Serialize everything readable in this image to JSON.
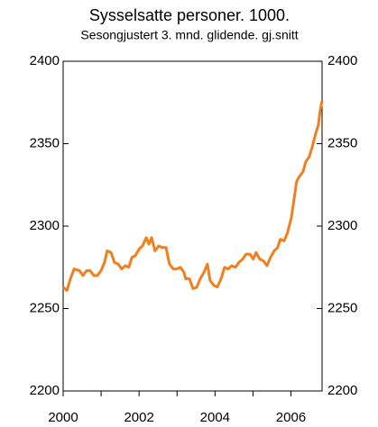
{
  "chart_data": {
    "type": "line",
    "title": "Sysselsatte personer. 1000.",
    "subtitle": "Sesongjustert 3. mnd. glidende. gj.snitt",
    "x": [
      2000,
      2000.1,
      2000.19,
      2000.29,
      2000.43,
      2000.52,
      2000.62,
      2000.71,
      2000.81,
      2000.9,
      2001,
      2001.09,
      2001.16,
      2001.26,
      2001.35,
      2001.45,
      2001.54,
      2001.64,
      2001.73,
      2001.81,
      2001.9,
      2002,
      2002.09,
      2002.19,
      2002.26,
      2002.33,
      2002.42,
      2002.52,
      2002.61,
      2002.71,
      2002.8,
      2002.9,
      2002.99,
      2003.09,
      2003.18,
      2003.23,
      2003.33,
      2003.42,
      2003.52,
      2003.61,
      2003.71,
      2003.8,
      2003.87,
      2003.97,
      2004.06,
      2004.16,
      2004.25,
      2004.35,
      2004.44,
      2004.54,
      2004.63,
      2004.73,
      2004.82,
      2004.92,
      2005.01,
      2005.08,
      2005.18,
      2005.27,
      2005.37,
      2005.46,
      2005.56,
      2005.65,
      2005.72,
      2005.82,
      2005.91,
      2006.01,
      2006.08,
      2006.15,
      2006.22,
      2006.32,
      2006.39,
      2006.48,
      2006.56,
      2006.65,
      2006.72,
      2006.77,
      2006.82
    ],
    "series": [
      {
        "name": "Sysselsatte personer",
        "color": "#f07f1e",
        "values": [
          2263,
          2261,
          2268,
          2274,
          2273,
          2270,
          2273,
          2273,
          2270,
          2270,
          2273,
          2278,
          2285,
          2284,
          2278,
          2277,
          2274,
          2276,
          2275,
          2281,
          2282,
          2286,
          2288,
          2293,
          2289,
          2293,
          2285,
          2288,
          2287,
          2287,
          2277,
          2274,
          2274,
          2275,
          2272,
          2268,
          2268,
          2262,
          2263,
          2268,
          2272,
          2277,
          2267,
          2264,
          2263,
          2268,
          2275,
          2274,
          2276,
          2275,
          2278,
          2280,
          2283,
          2283,
          2280,
          2284,
          2280,
          2279,
          2276,
          2281,
          2285,
          2287,
          2292,
          2291,
          2296,
          2305,
          2316,
          2327,
          2330,
          2333,
          2339,
          2342,
          2348,
          2356,
          2361,
          2370,
          2376
        ]
      }
    ],
    "xlim": [
      2000,
      2006.82
    ],
    "xticks": [
      2000,
      2002,
      2004,
      2006
    ],
    "xminor_ticks": [
      2001,
      2003,
      2005
    ],
    "ylim": [
      2200,
      2400
    ],
    "yticks": [
      2200,
      2250,
      2300,
      2350,
      2400
    ],
    "y2lim": [
      2200,
      2400
    ],
    "y2ticks": [
      2200,
      2250,
      2300,
      2350,
      2400
    ],
    "grid": false
  }
}
